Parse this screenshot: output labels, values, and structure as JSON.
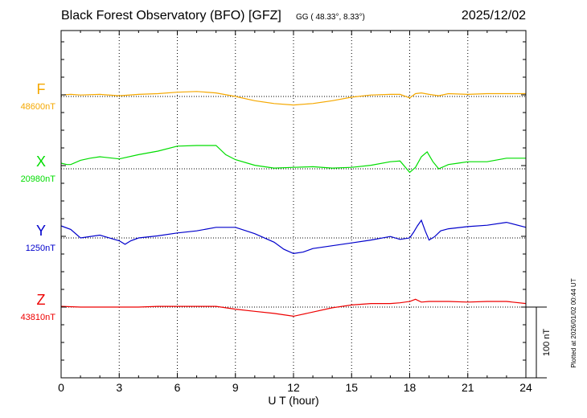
{
  "header": {
    "title": "Black Forest Observatory (BFO)  [GFZ]",
    "coords": "GG ( 48.33°,   8.33°)",
    "date": "2025/12/02"
  },
  "footer": {
    "plotted_note": "Plotted at 2026/01/02 00:44 UT"
  },
  "chart_data": {
    "type": "line",
    "title": "Black Forest Observatory (BFO)  [GFZ]",
    "xlabel": "U T (hour)",
    "xlim": [
      0,
      24
    ],
    "x_ticks": [
      0,
      3,
      6,
      9,
      12,
      15,
      18,
      21,
      24
    ],
    "x_tick_labels": [
      "0",
      "3",
      "6",
      "9",
      "12",
      "15",
      "18",
      "21",
      "24"
    ],
    "grid": true,
    "scale_bar": {
      "label": "100 nT",
      "value_nT": 100
    },
    "colors": {
      "F": "#f5a800",
      "X": "#00dd00",
      "Y": "#0000cc",
      "Z": "#ee0000"
    },
    "series": [
      {
        "name": "F",
        "baseline_label": "48600nT",
        "baseline": 48600,
        "color": "#f5a800",
        "x": [
          0,
          0.5,
          1,
          2,
          3,
          4,
          5,
          6,
          7,
          8,
          9,
          10,
          11,
          12,
          13,
          14,
          15,
          16,
          17,
          17.5,
          18,
          18.3,
          18.6,
          19,
          19.5,
          20,
          21,
          22,
          23,
          24
        ],
        "values": [
          48602,
          48603,
          48602,
          48603,
          48601,
          48603,
          48604,
          48606,
          48607,
          48605,
          48600,
          48594,
          48590,
          48588,
          48590,
          48594,
          48599,
          48602,
          48603,
          48603,
          48598,
          48604,
          48605,
          48603,
          48601,
          48604,
          48603,
          48604,
          48604,
          48604
        ]
      },
      {
        "name": "X",
        "baseline_label": "20980nT",
        "baseline": 20980,
        "color": "#00dd00",
        "x": [
          0,
          0.3,
          0.5,
          1,
          1.5,
          2,
          3,
          4,
          5,
          6,
          7,
          8,
          8.5,
          9,
          10,
          11,
          12,
          13,
          14,
          15,
          16,
          17,
          17.5,
          18,
          18.3,
          18.6,
          18.9,
          19.2,
          19.5,
          20,
          20.5,
          21,
          22,
          23,
          24
        ],
        "values": [
          20988,
          20986,
          20986,
          20992,
          20995,
          20997,
          20994,
          21000,
          21005,
          21012,
          21013,
          21013,
          21000,
          20993,
          20985,
          20981,
          20982,
          20983,
          20981,
          20982,
          20985,
          20990,
          20991,
          20975,
          20982,
          20997,
          21004,
          20990,
          20980,
          20986,
          20988,
          20990,
          20990,
          20995,
          20995
        ]
      },
      {
        "name": "Y",
        "baseline_label": "1250nT",
        "baseline": 1250,
        "color": "#0000cc",
        "x": [
          0,
          0.5,
          1,
          2,
          3,
          3.3,
          3.6,
          4,
          5,
          6,
          7,
          8,
          9,
          10,
          11,
          11.5,
          12,
          12.5,
          13,
          14,
          15,
          16,
          17,
          17.5,
          18,
          18.2,
          18.4,
          18.6,
          18.8,
          19,
          19.3,
          19.6,
          20,
          21,
          22,
          23,
          24
        ],
        "values": [
          1267,
          1262,
          1250,
          1254,
          1246,
          1241,
          1246,
          1250,
          1253,
          1257,
          1260,
          1265,
          1265,
          1256,
          1244,
          1234,
          1228,
          1230,
          1235,
          1239,
          1243,
          1247,
          1252,
          1248,
          1250,
          1258,
          1267,
          1275,
          1260,
          1247,
          1252,
          1260,
          1263,
          1266,
          1268,
          1272,
          1265
        ]
      },
      {
        "name": "Z",
        "baseline_label": "43810nT",
        "baseline": 43810,
        "color": "#ee0000",
        "x": [
          0,
          1,
          2,
          3,
          4,
          5,
          6,
          7,
          8,
          9,
          10,
          11,
          12,
          13,
          14,
          15,
          16,
          17,
          17.5,
          18,
          18.3,
          18.6,
          19,
          20,
          21,
          22,
          23,
          24
        ],
        "values": [
          43811,
          43810,
          43810,
          43810,
          43810,
          43811,
          43811,
          43811,
          43811,
          43807,
          43804,
          43801,
          43797,
          43803,
          43809,
          43813,
          43815,
          43815,
          43816,
          43818,
          43821,
          43817,
          43818,
          43818,
          43817,
          43818,
          43818,
          43815
        ]
      }
    ]
  }
}
